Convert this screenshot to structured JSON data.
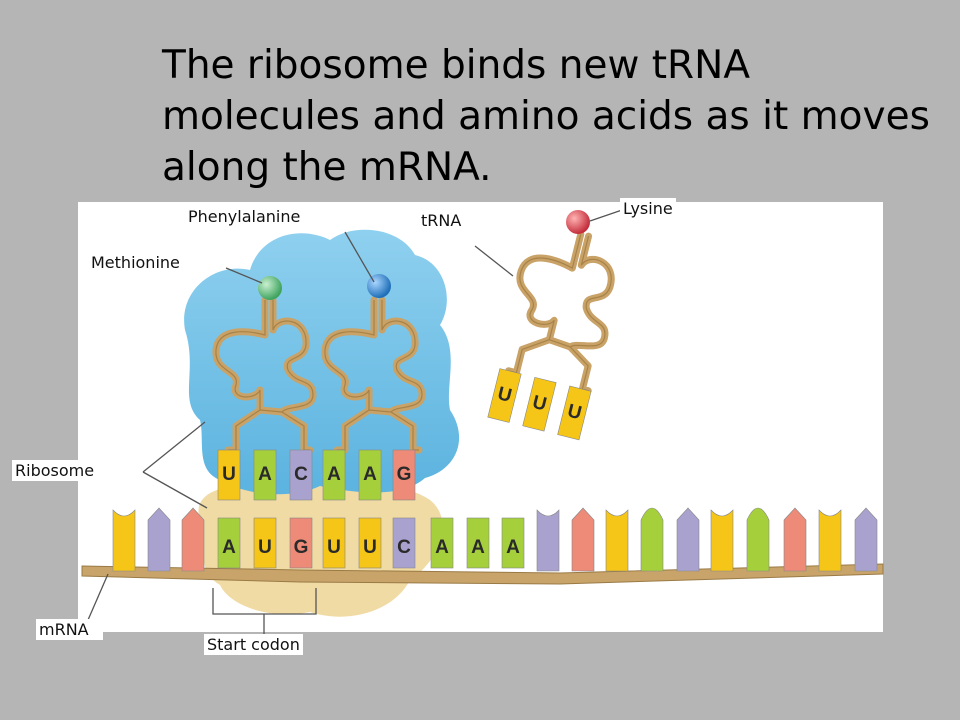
{
  "title_lines": [
    "The ribosome binds new tRNA",
    "molecules and amino acids as it moves",
    "along the mRNA."
  ],
  "labels": {
    "phenylalanine": "Phenylalanine",
    "trna": "tRNA",
    "lysine": "Lysine",
    "methionine": "Methionine",
    "ribosome": "Ribosome",
    "mrna": "mRNA",
    "start_codon": "Start codon"
  },
  "anticodons": {
    "trna1": [
      "U",
      "A",
      "C"
    ],
    "trna2": [
      "A",
      "A",
      "G"
    ],
    "trna3": [
      "U",
      "U",
      "U"
    ]
  },
  "codons": [
    "A",
    "U",
    "G",
    "U",
    "U",
    "C",
    "A",
    "A",
    "A"
  ],
  "colors": {
    "background": "#b5b5b5",
    "ribosome": "#7cc6e8",
    "ribosome_small": "#f0d9a0",
    "trna": "#c9a267",
    "mrna": "#c8a46a",
    "methionine": "#5fb878",
    "phenylalanine": "#2f86c8",
    "lysine": "#d2404c",
    "base_yellow": "#f5c518",
    "base_green": "#a6cf3c",
    "base_purple": "#a9a2cf",
    "base_red": "#ee8a78"
  }
}
